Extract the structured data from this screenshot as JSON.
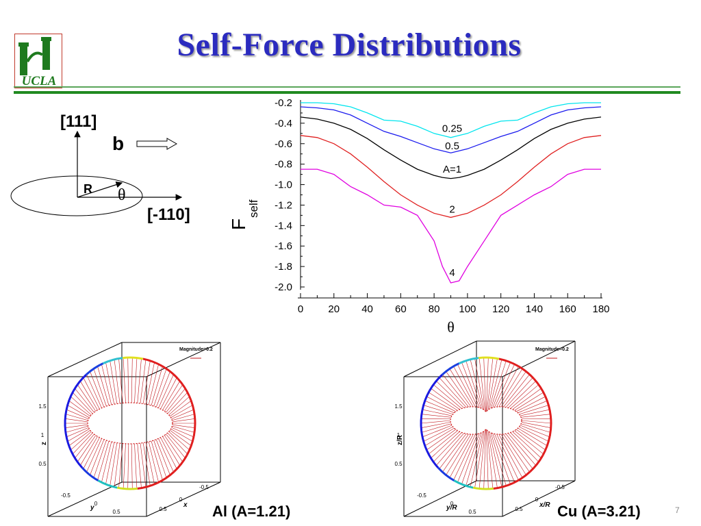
{
  "header": {
    "title": "Self-Force Distributions",
    "logo_text": "UCLA"
  },
  "colors": {
    "title": "#2b2bbf",
    "rule_dark": "#208a20",
    "rule_light": "#5aa55a"
  },
  "schematic": {
    "direction_111": "[111]",
    "burgers_label": "b",
    "radius_label": "R",
    "angle_label": "θ",
    "direction_110": "[-110]"
  },
  "chart_data": {
    "type": "line",
    "ylabel": "F",
    "ylabel_subscript": "self",
    "xlabel": "θ",
    "xlim": [
      0,
      180
    ],
    "ylim": [
      -2.0,
      -0.2
    ],
    "x_ticks": [
      "0",
      "20",
      "40",
      "60",
      "80",
      "100",
      "120",
      "140",
      "160",
      "180"
    ],
    "y_ticks": [
      "-0.2",
      "-0.4",
      "-0.6",
      "-0.8",
      "-1.0",
      "-1.2",
      "-1.4",
      "-1.6",
      "-1.8",
      "-2.0"
    ],
    "x": [
      0,
      10,
      20,
      30,
      40,
      50,
      60,
      70,
      80,
      85,
      90,
      95,
      100,
      110,
      120,
      130,
      140,
      150,
      160,
      170,
      180
    ],
    "series": [
      {
        "name": "0.25",
        "color": "#00e5ee",
        "values": [
          -0.2,
          -0.2,
          -0.21,
          -0.24,
          -0.3,
          -0.37,
          -0.38,
          -0.43,
          -0.5,
          -0.52,
          -0.54,
          -0.52,
          -0.5,
          -0.43,
          -0.38,
          -0.37,
          -0.3,
          -0.24,
          -0.21,
          -0.2,
          -0.2
        ]
      },
      {
        "name": "0.5",
        "color": "#1a1aee",
        "values": [
          -0.24,
          -0.25,
          -0.27,
          -0.32,
          -0.4,
          -0.48,
          -0.53,
          -0.59,
          -0.65,
          -0.67,
          -0.69,
          -0.67,
          -0.65,
          -0.59,
          -0.53,
          -0.48,
          -0.4,
          -0.32,
          -0.27,
          -0.25,
          -0.24
        ]
      },
      {
        "name": "A=1",
        "color": "#000000",
        "values": [
          -0.34,
          -0.36,
          -0.4,
          -0.46,
          -0.55,
          -0.66,
          -0.76,
          -0.85,
          -0.91,
          -0.93,
          -0.94,
          -0.93,
          -0.91,
          -0.85,
          -0.76,
          -0.66,
          -0.55,
          -0.46,
          -0.4,
          -0.36,
          -0.34
        ]
      },
      {
        "name": "2",
        "color": "#e02020",
        "values": [
          -0.52,
          -0.54,
          -0.6,
          -0.7,
          -0.83,
          -0.97,
          -1.1,
          -1.2,
          -1.28,
          -1.3,
          -1.32,
          -1.3,
          -1.28,
          -1.2,
          -1.1,
          -0.97,
          -0.83,
          -0.7,
          -0.6,
          -0.54,
          -0.52
        ]
      },
      {
        "name": "4",
        "color": "#e000e0",
        "values": [
          -0.85,
          -0.85,
          -0.9,
          -1.02,
          -1.1,
          -1.2,
          -1.22,
          -1.3,
          -1.55,
          -1.8,
          -1.96,
          -1.94,
          -1.8,
          -1.55,
          -1.3,
          -1.2,
          -1.1,
          -1.02,
          -0.9,
          -0.85,
          -0.85
        ]
      }
    ],
    "curve_labels": [
      {
        "text": "0.25",
        "x": 90,
        "y": -0.45
      },
      {
        "text": "0.5",
        "x": 90,
        "y": -0.62
      },
      {
        "text": "A=1",
        "x": 90,
        "y": -0.85
      },
      {
        "text": "2",
        "x": 90,
        "y": -1.24
      },
      {
        "text": "4",
        "x": 90,
        "y": -1.86
      }
    ]
  },
  "plot3d_al": {
    "caption": "Al (A=1.21)",
    "magnitude": "Magnitude=0.2",
    "z_ticks": [
      "1.5",
      "1",
      "0.5"
    ],
    "z_label": "z",
    "y_ticks": [
      "-0.5",
      "0",
      "0.5"
    ],
    "y_label": "y",
    "x_ticks": [
      "0.5",
      "0",
      "-0.5"
    ],
    "x_label": "x"
  },
  "plot3d_cu": {
    "caption": "Cu (A=3.21)",
    "magnitude": "Magnitude=0.2",
    "z_ticks": [
      "1.5",
      "1",
      "0.5"
    ],
    "z_label": "z/R",
    "y_ticks": [
      "-0.5",
      "0",
      "0.5"
    ],
    "y_label": "y/R",
    "x_ticks": [
      "0.5",
      "0",
      "-0.5"
    ],
    "x_label": "x/R"
  },
  "footer": {
    "page_number": "7"
  }
}
